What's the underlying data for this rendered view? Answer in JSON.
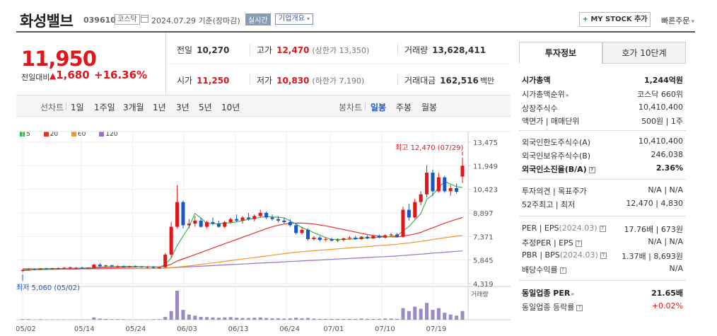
{
  "header": {
    "title": "화성밸브",
    "code": "039610",
    "market": "코스닥",
    "date": "2024.07.29 기준(장마감)",
    "realtime": "실시간",
    "overview": "기업개요",
    "overview_arrow": "▾",
    "mystock_plus": "+",
    "mystock": "MY STOCK 추가",
    "quick_order": "빠른주문"
  },
  "price": {
    "current": "11,950",
    "change_label": "전일대비",
    "change_arrow": "▲",
    "change": "1,680",
    "change_pct": "+16.36%"
  },
  "stats": {
    "prev_label": "전일",
    "prev": "10,270",
    "high_label": "고가",
    "high": "12,470",
    "upper_limit": "(상한가 13,350)",
    "volume_label": "거래량",
    "volume": "13,628,411",
    "open_label": "시가",
    "open": "11,250",
    "low_label": "저가",
    "low": "10,830",
    "lower_limit": "(하한가 7,190)",
    "amount_label": "거래대금",
    "amount": "162,516",
    "amount_unit": "백만"
  },
  "periodbar": {
    "line_label": "선차트",
    "line_periods": [
      "1일",
      "1주일",
      "3개월",
      "1년",
      "3년",
      "5년",
      "10년"
    ],
    "candle_label": "봉차트",
    "candle_periods": [
      "일봉",
      "주봉",
      "월봉"
    ],
    "active_candle": "일봉"
  },
  "chart_data": {
    "type": "candlestick",
    "legend": [
      {
        "name": "5",
        "color": "#3cb44b"
      },
      {
        "name": "20",
        "color": "#e6322d"
      },
      {
        "name": "60",
        "color": "#f0962d"
      },
      {
        "name": "120",
        "color": "#9b6ec8"
      }
    ],
    "y_ticks": [
      "13,475",
      "11,949",
      "10,423",
      "8,897",
      "7,371",
      "5,845",
      "4,319"
    ],
    "ylim": [
      4319,
      13475
    ],
    "x_ticks": [
      "05/02",
      "05/14",
      "05/24",
      "06/03",
      "06/13",
      "06/24",
      "07/01",
      "07/10",
      "07/19"
    ],
    "high_annotation": "최고 12,470 (07/29)",
    "low_annotation": "최저 5,060 (05/02)",
    "volume_label": "거래량",
    "candles": [
      [
        5150,
        5250,
        5060,
        5200
      ],
      [
        5200,
        5300,
        5150,
        5250
      ],
      [
        5250,
        5300,
        5180,
        5230
      ],
      [
        5230,
        5320,
        5200,
        5300
      ],
      [
        5300,
        5350,
        5250,
        5280
      ],
      [
        5280,
        5350,
        5220,
        5320
      ],
      [
        5320,
        5380,
        5280,
        5300
      ],
      [
        5300,
        5400,
        5280,
        5350
      ],
      [
        5350,
        5420,
        5300,
        5380
      ],
      [
        5300,
        5400,
        5250,
        5350
      ],
      [
        5350,
        5420,
        5300,
        5320
      ],
      [
        5320,
        5380,
        5280,
        5350
      ],
      [
        5350,
        5600,
        5300,
        5550
      ],
      [
        5550,
        5650,
        5400,
        5450
      ],
      [
        5450,
        5550,
        5380,
        5500
      ],
      [
        5500,
        5550,
        5400,
        5420
      ],
      [
        5420,
        5500,
        5350,
        5450
      ],
      [
        5450,
        5500,
        5380,
        5400
      ],
      [
        5400,
        5480,
        5350,
        5450
      ],
      [
        5450,
        5500,
        5380,
        5420
      ],
      [
        5420,
        5480,
        5350,
        5380
      ],
      [
        5380,
        5450,
        5320,
        5400
      ],
      [
        5400,
        5450,
        5300,
        5350
      ],
      [
        5350,
        5420,
        5300,
        5380
      ],
      [
        5380,
        6300,
        5350,
        6200
      ],
      [
        6200,
        8300,
        6000,
        8000
      ],
      [
        8000,
        10700,
        7900,
        9600
      ],
      [
        9600,
        9700,
        7900,
        8100
      ],
      [
        8100,
        8500,
        7900,
        8200
      ],
      [
        8200,
        8700,
        8000,
        8400
      ],
      [
        8400,
        8600,
        7950,
        8000
      ],
      [
        8000,
        8400,
        7900,
        8300
      ],
      [
        8300,
        8600,
        8100,
        8200
      ],
      [
        8200,
        8400,
        7950,
        8000
      ],
      [
        8000,
        8400,
        7900,
        8300
      ],
      [
        8300,
        8600,
        8200,
        8500
      ],
      [
        8500,
        8800,
        8300,
        8400
      ],
      [
        8400,
        8700,
        8200,
        8600
      ],
      [
        8600,
        8900,
        8400,
        8500
      ],
      [
        8500,
        8800,
        8350,
        8700
      ],
      [
        8700,
        9100,
        8600,
        8900
      ],
      [
        8900,
        9000,
        8500,
        8600
      ],
      [
        8600,
        8800,
        8400,
        8500
      ],
      [
        8500,
        8700,
        8300,
        8400
      ],
      [
        8400,
        8600,
        8200,
        8300
      ],
      [
        8300,
        8500,
        8000,
        8100
      ],
      [
        8100,
        8200,
        7500,
        7600
      ],
      [
        7600,
        8000,
        7500,
        7800
      ],
      [
        7800,
        7900,
        7100,
        7200
      ],
      [
        7200,
        7400,
        7100,
        7300
      ],
      [
        7300,
        7400,
        7050,
        7150
      ],
      [
        7150,
        7300,
        7050,
        7200
      ],
      [
        7200,
        7300,
        7050,
        7100
      ],
      [
        7100,
        7250,
        7000,
        7150
      ],
      [
        7150,
        7300,
        7050,
        7250
      ],
      [
        7250,
        7400,
        7150,
        7300
      ],
      [
        7300,
        7400,
        7150,
        7200
      ],
      [
        7200,
        7400,
        7150,
        7350
      ],
      [
        7350,
        7450,
        7200,
        7250
      ],
      [
        7250,
        7450,
        7200,
        7400
      ],
      [
        7400,
        7500,
        7250,
        7300
      ],
      [
        7300,
        7500,
        7250,
        7450
      ],
      [
        7450,
        7600,
        7350,
        7500
      ],
      [
        7500,
        7600,
        7300,
        7350
      ],
      [
        7350,
        9300,
        7300,
        9100
      ],
      [
        9100,
        9500,
        8400,
        8600
      ],
      [
        8600,
        9800,
        8500,
        9600
      ],
      [
        9600,
        10300,
        9400,
        10100
      ],
      [
        10100,
        12000,
        9900,
        11500
      ],
      [
        11500,
        11700,
        10000,
        10300
      ],
      [
        10300,
        11500,
        10200,
        11200
      ],
      [
        11200,
        11300,
        10200,
        10300
      ],
      [
        10300,
        10700,
        10000,
        10500
      ],
      [
        10500,
        10800,
        10150,
        10270
      ],
      [
        11250,
        12470,
        10830,
        11950
      ]
    ],
    "ma5": [
      5150,
      5190,
      5220,
      5240,
      5260,
      5280,
      5290,
      5300,
      5310,
      5320,
      5330,
      5330,
      5380,
      5400,
      5420,
      5430,
      5430,
      5430,
      5430,
      5420,
      5420,
      5410,
      5400,
      5390,
      5540,
      5980,
      6780,
      7380,
      8010,
      8860,
      8560,
      8220,
      8200,
      8190,
      8240,
      8260,
      8320,
      8400,
      8480,
      8540,
      8620,
      8660,
      8640,
      8620,
      8580,
      8380,
      8180,
      7940,
      7800,
      7620,
      7460,
      7300,
      7190,
      7180,
      7180,
      7200,
      7220,
      7260,
      7280,
      7300,
      7330,
      7340,
      7380,
      7420,
      7740,
      8020,
      8440,
      8860,
      9780,
      10060,
      10540,
      10940,
      10760,
      10600,
      10540
    ],
    "ma20": [
      5200,
      5210,
      5220,
      5230,
      5240,
      5250,
      5260,
      5270,
      5280,
      5290,
      5300,
      5310,
      5320,
      5330,
      5340,
      5350,
      5360,
      5370,
      5380,
      5390,
      5400,
      5400,
      5400,
      5400,
      5450,
      5580,
      5780,
      5920,
      6060,
      6200,
      6340,
      6480,
      6620,
      6760,
      6900,
      7040,
      7180,
      7320,
      7460,
      7600,
      7740,
      7880,
      8000,
      8100,
      8180,
      8220,
      8240,
      8240,
      8220,
      8180,
      8120,
      8060,
      7980,
      7900,
      7820,
      7740,
      7660,
      7580,
      7500,
      7440,
      7400,
      7370,
      7350,
      7340,
      7400,
      7460,
      7540,
      7640,
      7800,
      7940,
      8080,
      8240,
      8360,
      8480,
      8600
    ],
    "ma60": [
      5300,
      5300,
      5300,
      5300,
      5300,
      5300,
      5300,
      5300,
      5300,
      5300,
      5300,
      5300,
      5300,
      5300,
      5300,
      5300,
      5300,
      5300,
      5300,
      5300,
      5300,
      5300,
      5300,
      5300,
      5320,
      5350,
      5390,
      5430,
      5470,
      5510,
      5560,
      5610,
      5660,
      5710,
      5760,
      5810,
      5860,
      5910,
      5960,
      6010,
      6060,
      6110,
      6160,
      6210,
      6260,
      6310,
      6350,
      6390,
      6420,
      6450,
      6480,
      6510,
      6540,
      6570,
      6600,
      6630,
      6660,
      6690,
      6720,
      6750,
      6780,
      6810,
      6840,
      6870,
      6910,
      6950,
      7000,
      7050,
      7110,
      7170,
      7230,
      7290,
      7340,
      7390,
      7440
    ],
    "ma120": [
      5230,
      5240,
      5240,
      5240,
      5250,
      5250,
      5250,
      5260,
      5260,
      5260,
      5270,
      5270,
      5270,
      5280,
      5280,
      5280,
      5290,
      5290,
      5290,
      5300,
      5300,
      5300,
      5310,
      5310,
      5330,
      5350,
      5370,
      5390,
      5410,
      5430,
      5450,
      5470,
      5490,
      5510,
      5530,
      5550,
      5570,
      5590,
      5610,
      5630,
      5650,
      5670,
      5690,
      5710,
      5730,
      5750,
      5770,
      5790,
      5810,
      5830,
      5850,
      5870,
      5890,
      5910,
      5930,
      5950,
      5970,
      5990,
      6010,
      6030,
      6050,
      6070,
      6090,
      6110,
      6140,
      6170,
      6200,
      6230,
      6260,
      6290,
      6320,
      6350,
      6380,
      6410,
      6440
    ],
    "volume": [
      2,
      2,
      1,
      2,
      1,
      1,
      1,
      1,
      1,
      1,
      1,
      1,
      8,
      4,
      3,
      2,
      2,
      2,
      1,
      1,
      1,
      1,
      2,
      2,
      10,
      30,
      100,
      34,
      18,
      14,
      10,
      9,
      8,
      7,
      8,
      9,
      7,
      6,
      6,
      7,
      8,
      6,
      5,
      5,
      4,
      5,
      7,
      5,
      6,
      4,
      3,
      3,
      3,
      3,
      3,
      3,
      3,
      4,
      3,
      3,
      3,
      4,
      4,
      3,
      40,
      30,
      45,
      38,
      58,
      34,
      40,
      24,
      18,
      14,
      30
    ]
  },
  "panel": {
    "tab_active": "투자정보",
    "tab_other": "호가 10단계",
    "rows": [
      {
        "k": "시가총액",
        "v": "1,244억원",
        "bold": true
      },
      {
        "k": "시가총액순위",
        "v": "코스닥 660위",
        "arrow": "▸"
      },
      {
        "k": "상장주식수",
        "v": "10,410,400"
      },
      {
        "k": "액면가 | 매매단위",
        "v": "500원 | 1주"
      },
      {
        "k": "외국인한도주식수(A)",
        "v": "10,410,400"
      },
      {
        "k": "외국인보유주식수(B)",
        "v": "246,038"
      },
      {
        "k": "외국인소진율(B/A)",
        "v": "2.36%",
        "bold": true,
        "q": "?"
      },
      {
        "k": "투자의견 | 목표주가",
        "v": "N/A | N/A"
      },
      {
        "k": "52주최고 | 최저",
        "v": "12,470 | 4,830"
      },
      {
        "k": "PER | EPS",
        "k2": "(2024.03)",
        "v": "17.76배 | 673원",
        "q": "?"
      },
      {
        "k": "추정PER | EPS",
        "v": "N/A | N/A",
        "q": "?"
      },
      {
        "k": "PBR | BPS",
        "k2": "(2024.03)",
        "v": "1.37배 | 8,693원",
        "q": "?"
      },
      {
        "k": "배당수익률",
        "v": "N/A",
        "q": "?"
      },
      {
        "k": "동일업종 PER",
        "v": "21.65배",
        "bold": true,
        "arrow": "▸"
      },
      {
        "k": "동일업종 등락률",
        "v": "+0.02%",
        "red": true,
        "q": "?"
      }
    ]
  }
}
